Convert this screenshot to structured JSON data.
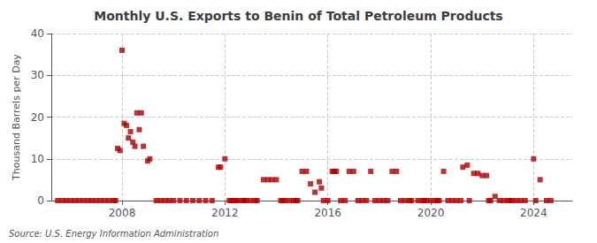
{
  "chart_data": {
    "type": "scatter",
    "title": "Monthly U.S. Exports to Benin of Total Petroleum Products",
    "ylabel": "Thousand Barrels per Day",
    "annotations": [
      "Source: U.S. Energy Information Administration"
    ],
    "color": "#AA0000",
    "marker": "square",
    "grid": true,
    "xlim": [
      2005.25,
      2025.5
    ],
    "xticks": [
      2008,
      2012,
      2016,
      2020,
      2024
    ],
    "ylim": [
      0,
      40
    ],
    "yticks": [
      0,
      10,
      20,
      30,
      40
    ],
    "x": [
      2005.5,
      2005.67,
      2005.83,
      2006.0,
      2006.17,
      2006.33,
      2006.5,
      2006.67,
      2006.83,
      2007.0,
      2007.17,
      2007.33,
      2007.5,
      2007.67,
      2007.75,
      2007.83,
      2007.92,
      2008.0,
      2008.08,
      2008.17,
      2008.25,
      2008.33,
      2008.42,
      2008.5,
      2008.58,
      2008.67,
      2008.75,
      2008.83,
      2009.0,
      2009.08,
      2009.33,
      2009.5,
      2009.67,
      2009.83,
      2010.0,
      2010.25,
      2010.5,
      2010.75,
      2011.0,
      2011.25,
      2011.5,
      2011.75,
      2011.83,
      2012.0,
      2012.17,
      2012.25,
      2012.33,
      2012.42,
      2012.5,
      2012.67,
      2012.75,
      2012.83,
      2013.0,
      2013.17,
      2013.25,
      2013.5,
      2013.67,
      2013.83,
      2014.0,
      2014.17,
      2014.25,
      2014.33,
      2014.5,
      2014.67,
      2014.75,
      2014.83,
      2015.0,
      2015.17,
      2015.33,
      2015.5,
      2015.67,
      2015.75,
      2015.83,
      2016.0,
      2016.17,
      2016.25,
      2016.33,
      2016.5,
      2016.67,
      2016.83,
      2017.0,
      2017.17,
      2017.33,
      2017.5,
      2017.67,
      2017.83,
      2018.0,
      2018.17,
      2018.33,
      2018.5,
      2018.67,
      2018.83,
      2019.0,
      2019.17,
      2019.25,
      2019.5,
      2019.67,
      2019.75,
      2019.83,
      2020.0,
      2020.17,
      2020.25,
      2020.33,
      2020.5,
      2020.67,
      2020.83,
      2021.0,
      2021.17,
      2021.25,
      2021.42,
      2021.5,
      2021.67,
      2021.83,
      2022.0,
      2022.17,
      2022.25,
      2022.33,
      2022.5,
      2022.67,
      2022.83,
      2023.0,
      2023.08,
      2023.17,
      2023.33,
      2023.5,
      2023.67,
      2024.0,
      2024.08,
      2024.25,
      2024.5,
      2024.67
    ],
    "values": [
      0,
      0,
      0,
      0,
      0,
      0,
      0,
      0,
      0,
      0,
      0,
      0,
      0,
      0,
      0,
      12.5,
      12.0,
      36.0,
      18.5,
      18.0,
      15.0,
      16.5,
      14.0,
      13.0,
      21.0,
      17.0,
      21.0,
      13.0,
      9.5,
      10.0,
      0,
      0,
      0,
      0,
      0,
      0,
      0,
      0,
      0,
      0,
      0,
      8.0,
      8.0,
      10.0,
      0,
      0,
      0,
      0,
      0,
      0,
      0,
      0,
      0,
      0,
      0,
      5.0,
      5.0,
      5.0,
      5.0,
      0,
      0,
      0,
      0,
      0,
      0,
      0,
      7.0,
      7.0,
      4.0,
      2.0,
      4.5,
      3.0,
      0,
      0,
      7.0,
      7.0,
      7.0,
      0,
      0,
      7.0,
      7.0,
      0,
      0,
      0,
      7.0,
      0,
      0,
      0,
      0,
      7.0,
      7.0,
      0,
      0,
      0,
      0,
      0,
      0,
      0,
      0,
      0,
      0,
      0,
      0,
      7.0,
      0,
      0,
      0,
      0,
      8.0,
      8.5,
      0,
      6.5,
      6.5,
      6.0,
      6.0,
      0,
      0,
      1.0,
      0,
      0,
      0,
      0,
      0,
      0,
      0,
      0,
      10.0,
      0,
      5.0,
      0,
      0
    ]
  }
}
